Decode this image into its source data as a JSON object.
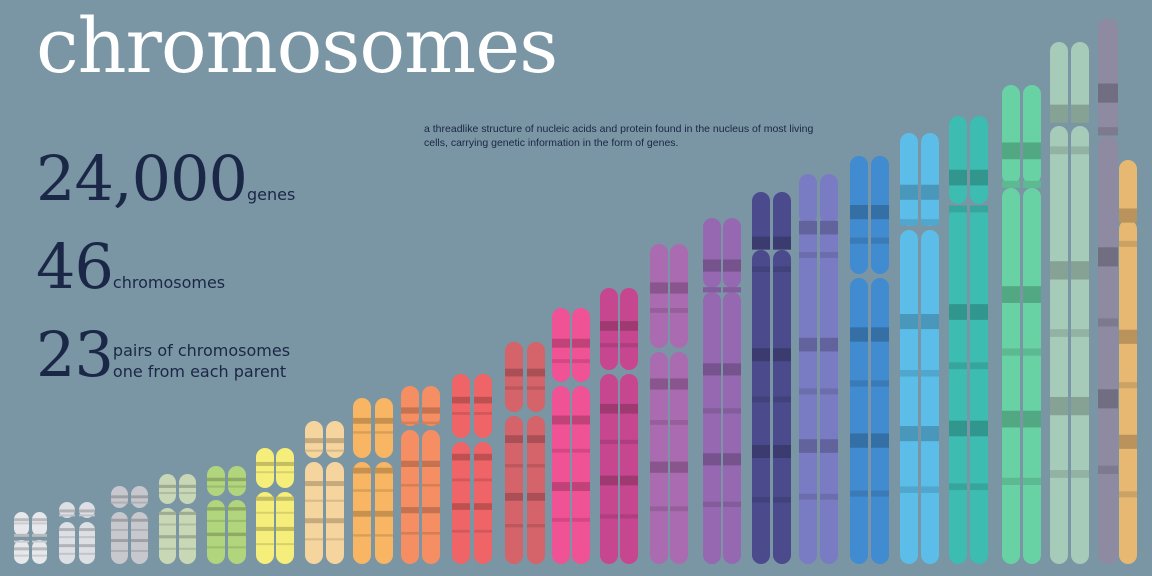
{
  "title": "chromosomes",
  "definition": "a threadlike structure of nucleic acids and protein found in the nucleus of most living cells, carrying genetic information in the form of genes.",
  "stats": [
    {
      "value": "24,000",
      "label": "genes"
    },
    {
      "value": "46",
      "label": "chromosomes"
    },
    {
      "value": "23",
      "label_line1": "pairs of chromosomes",
      "label_line2": "one from each parent"
    }
  ],
  "chart_data": {
    "type": "other",
    "description_count": 23,
    "chromosome_colors": [
      "#e6e8ec",
      "#dcdfe4",
      "#c6c8ce",
      "#c8d7b6",
      "#b1d57d",
      "#f5ee7a",
      "#f6d49d",
      "#f8b563",
      "#f58f63",
      "#ef6467",
      "#d4636a",
      "#f05296",
      "#c6478f",
      "#aa6bb0",
      "#9568b1",
      "#4a4a8c",
      "#7a7cc3",
      "#418bd0",
      "#5bbde8",
      "#3dbcb1",
      "#68d2a5",
      "#a6cbb9",
      "#8e8aa1",
      "#e7b872"
    ]
  }
}
